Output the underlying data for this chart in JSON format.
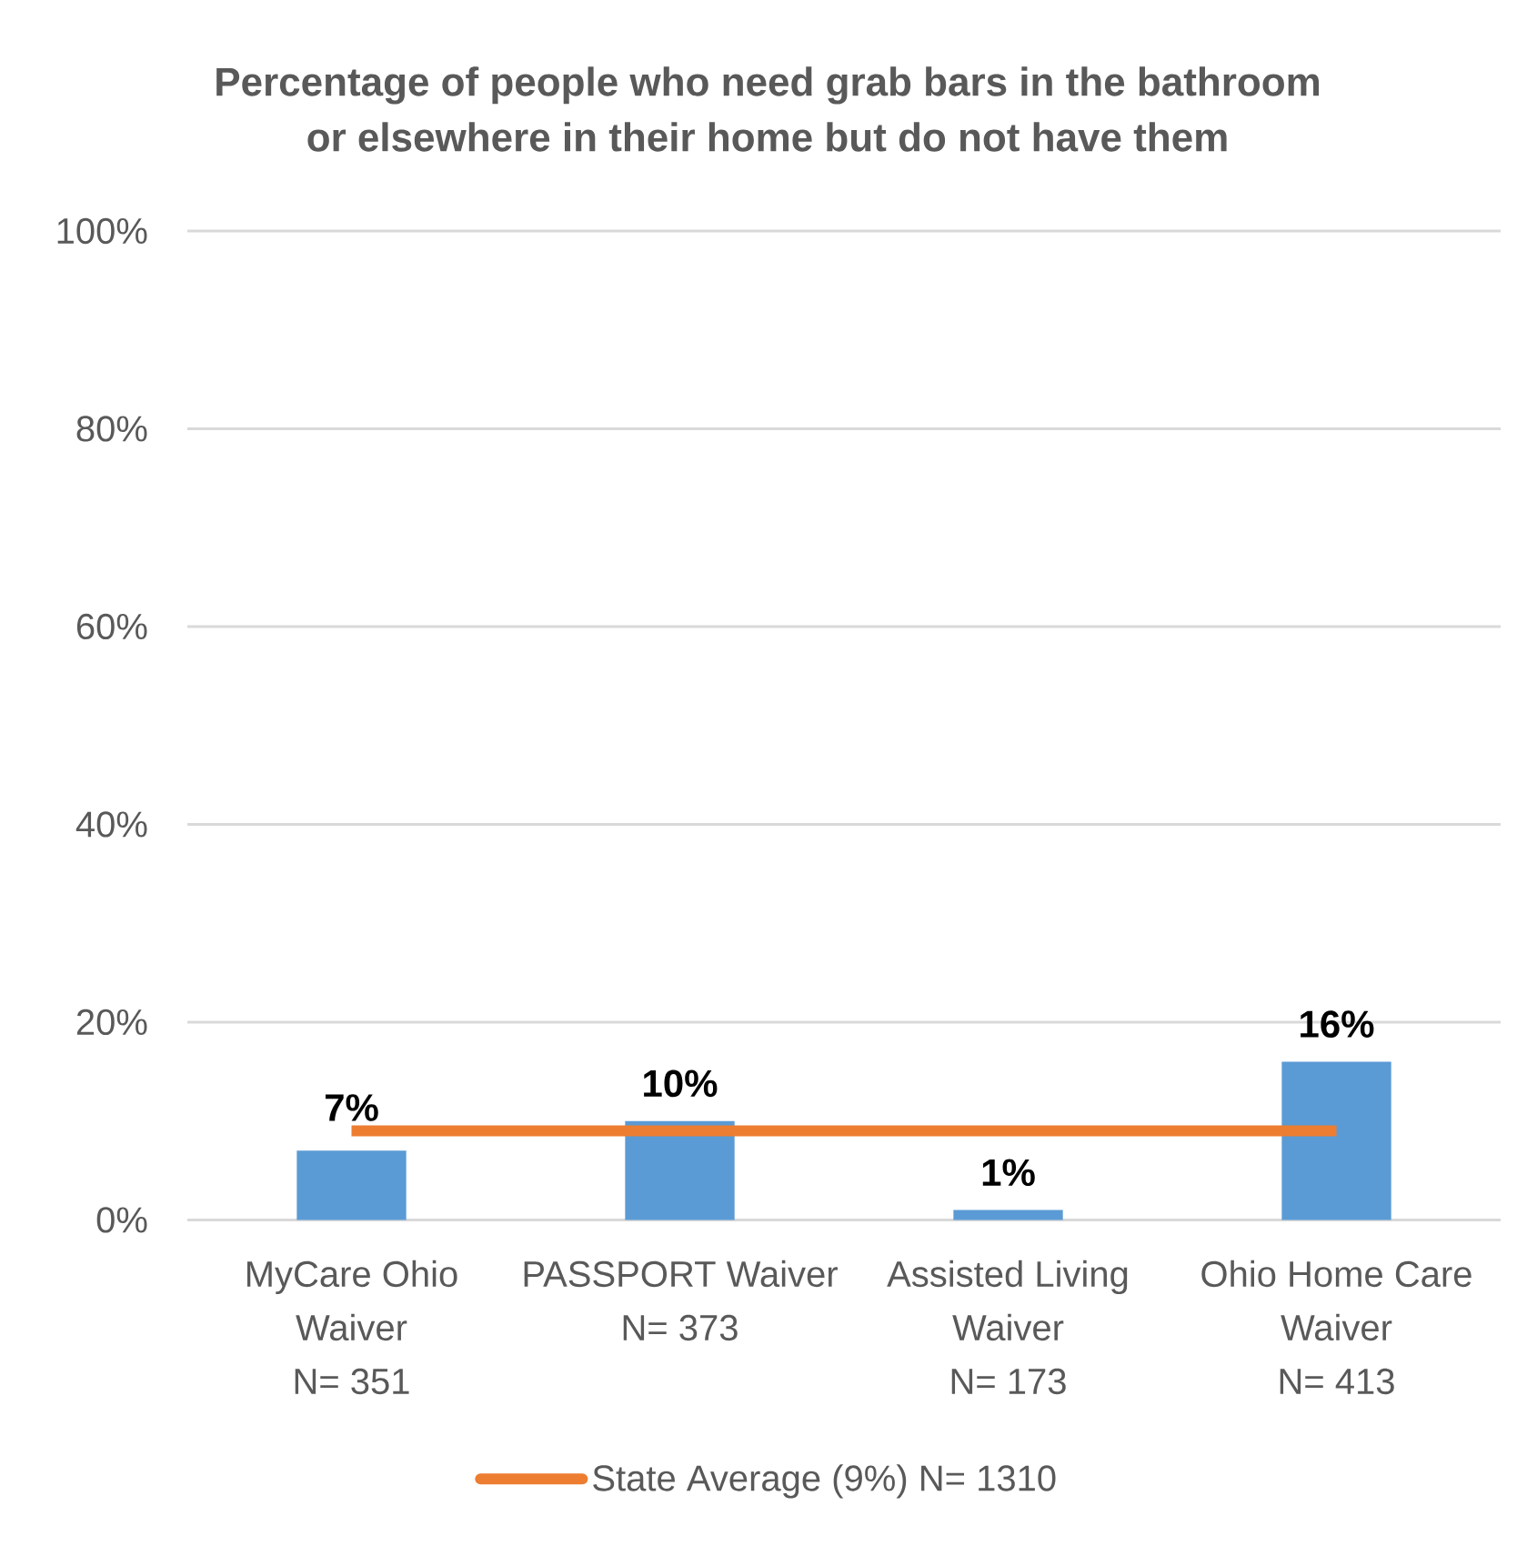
{
  "chart_data": {
    "type": "bar",
    "title": "Percentage of people who need grab bars in the bathroom\nor elsewhere in their home but do not have them",
    "categories": [
      "MyCare Ohio Waiver\nN= 351",
      "PASSPORT Waiver\nN= 373",
      "Assisted Living Waiver\nN= 173",
      "Ohio Home Care Waiver\nN= 413"
    ],
    "series": [
      {
        "color": "#5b9bd5",
        "values": [
          7,
          10,
          1,
          16
        ],
        "value_labels": [
          "7%",
          "10%",
          "1%",
          "16%"
        ]
      },
      {
        "type": "line",
        "name": "State Average (9%) N= 1310",
        "color": "#ed7d31",
        "values": [
          9,
          9,
          9,
          9
        ]
      }
    ],
    "ylim": [
      0,
      100
    ],
    "yticks": [
      {
        "value": 0,
        "label": "0%"
      },
      {
        "value": 20,
        "label": "20%"
      },
      {
        "value": 40,
        "label": "40%"
      },
      {
        "value": 60,
        "label": "60%"
      },
      {
        "value": 80,
        "label": "80%"
      },
      {
        "value": 100,
        "label": "100%"
      }
    ],
    "grid": "y",
    "legend": "bottom"
  }
}
